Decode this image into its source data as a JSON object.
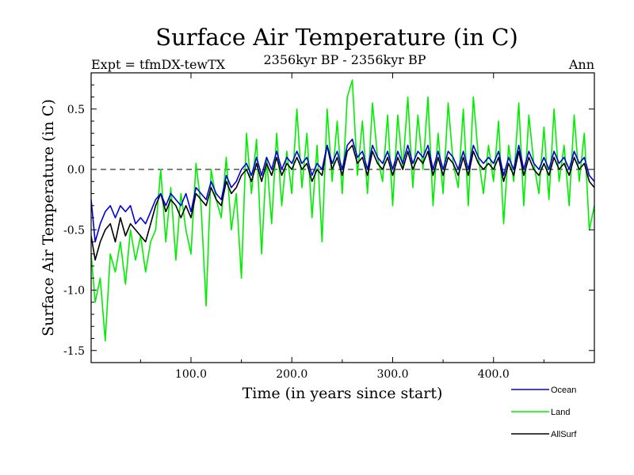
{
  "chart_data": {
    "type": "line",
    "title": "Surface Air Temperature (in C)",
    "subtitle": "2356kyr BP - 2356kyr BP",
    "experiment_label": "Expt = tfmDX-tewTX",
    "season_label": "Ann",
    "xlabel": "Time (in years since start)",
    "ylabel": "Surface Air Temperature (in C)",
    "xlim": [
      1,
      500
    ],
    "ylim": [
      -1.6,
      0.8
    ],
    "xticks": [
      100,
      200,
      300,
      400
    ],
    "xtick_labels": [
      "100.0",
      "200.0",
      "300.0",
      "400.0"
    ],
    "yticks": [
      -1.5,
      -1.0,
      -0.5,
      0.0,
      0.5
    ],
    "ytick_labels": [
      "-1.5",
      "-1.0",
      "-0.5",
      "0.0",
      "0.5"
    ],
    "zero_line": 0.0,
    "series": [
      {
        "name": "Land",
        "color": "#00ee00",
        "x": [
          1,
          5,
          10,
          15,
          20,
          25,
          30,
          35,
          40,
          45,
          50,
          55,
          60,
          65,
          70,
          75,
          80,
          85,
          90,
          95,
          100,
          105,
          110,
          115,
          120,
          125,
          130,
          135,
          140,
          145,
          150,
          155,
          160,
          165,
          170,
          175,
          180,
          185,
          190,
          195,
          200,
          205,
          210,
          215,
          220,
          225,
          230,
          235,
          240,
          245,
          250,
          255,
          260,
          265,
          270,
          275,
          280,
          285,
          290,
          295,
          300,
          305,
          310,
          315,
          320,
          325,
          330,
          335,
          340,
          345,
          350,
          355,
          360,
          365,
          370,
          375,
          380,
          385,
          390,
          395,
          400,
          405,
          410,
          415,
          420,
          425,
          430,
          435,
          440,
          445,
          450,
          455,
          460,
          465,
          470,
          475,
          480,
          485,
          490,
          495,
          500
        ],
        "values": [
          -0.7,
          -1.1,
          -0.9,
          -1.42,
          -0.7,
          -0.85,
          -0.6,
          -0.95,
          -0.5,
          -0.75,
          -0.55,
          -0.85,
          -0.6,
          -0.5,
          0.0,
          -0.6,
          -0.15,
          -0.75,
          -0.2,
          -0.5,
          -0.7,
          0.05,
          -0.3,
          -1.13,
          0.0,
          -0.25,
          -0.4,
          0.1,
          -0.5,
          -0.2,
          -0.9,
          0.3,
          -0.2,
          0.25,
          -0.7,
          0.1,
          -0.45,
          0.3,
          -0.3,
          0.15,
          -0.2,
          0.5,
          -0.15,
          0.3,
          -0.4,
          0.2,
          -0.6,
          0.5,
          -0.1,
          0.4,
          -0.2,
          0.6,
          0.74,
          -0.05,
          0.4,
          -0.2,
          0.55,
          0.1,
          -0.1,
          0.45,
          -0.3,
          0.45,
          0.0,
          0.6,
          -0.15,
          0.45,
          0.0,
          0.6,
          -0.3,
          0.3,
          -0.2,
          0.55,
          0.05,
          -0.15,
          0.5,
          -0.3,
          0.6,
          0.1,
          -0.2,
          0.2,
          -0.1,
          0.4,
          -0.45,
          0.2,
          -0.1,
          0.55,
          -0.3,
          0.45,
          0.05,
          -0.2,
          0.35,
          -0.25,
          0.5,
          -0.1,
          0.2,
          -0.3,
          0.45,
          -0.1,
          0.3,
          -0.5,
          -0.3
        ]
      },
      {
        "name": "AllSurf",
        "color": "#000000",
        "x": [
          1,
          5,
          10,
          15,
          20,
          25,
          30,
          35,
          40,
          45,
          50,
          55,
          60,
          65,
          70,
          75,
          80,
          85,
          90,
          95,
          100,
          105,
          110,
          115,
          120,
          125,
          130,
          135,
          140,
          145,
          150,
          155,
          160,
          165,
          170,
          175,
          180,
          185,
          190,
          195,
          200,
          205,
          210,
          215,
          220,
          225,
          230,
          235,
          240,
          245,
          250,
          255,
          260,
          265,
          270,
          275,
          280,
          285,
          290,
          295,
          300,
          305,
          310,
          315,
          320,
          325,
          330,
          335,
          340,
          345,
          350,
          355,
          360,
          365,
          370,
          375,
          380,
          385,
          390,
          395,
          400,
          405,
          410,
          415,
          420,
          425,
          430,
          435,
          440,
          445,
          450,
          455,
          460,
          465,
          470,
          475,
          480,
          485,
          490,
          495,
          500
        ],
        "values": [
          -0.55,
          -0.75,
          -0.6,
          -0.5,
          -0.45,
          -0.6,
          -0.4,
          -0.55,
          -0.45,
          -0.5,
          -0.55,
          -0.6,
          -0.45,
          -0.3,
          -0.2,
          -0.35,
          -0.25,
          -0.3,
          -0.4,
          -0.3,
          -0.4,
          -0.2,
          -0.25,
          -0.3,
          -0.15,
          -0.25,
          -0.3,
          -0.1,
          -0.2,
          -0.15,
          -0.05,
          0.0,
          -0.1,
          0.05,
          -0.1,
          0.05,
          -0.05,
          0.1,
          -0.05,
          0.05,
          0.0,
          0.1,
          0.0,
          0.05,
          -0.1,
          0.0,
          -0.05,
          0.2,
          0.0,
          0.1,
          -0.05,
          0.15,
          0.2,
          0.05,
          0.1,
          -0.05,
          0.15,
          0.05,
          0.0,
          0.1,
          -0.05,
          0.1,
          0.0,
          0.15,
          0.0,
          0.1,
          0.05,
          0.15,
          -0.05,
          0.1,
          -0.05,
          0.1,
          0.05,
          -0.05,
          0.1,
          -0.05,
          0.15,
          0.05,
          0.0,
          0.05,
          0.0,
          0.1,
          -0.1,
          0.05,
          -0.05,
          0.15,
          -0.05,
          0.1,
          0.0,
          -0.05,
          0.05,
          -0.05,
          0.1,
          0.0,
          0.05,
          -0.05,
          0.1,
          0.0,
          0.05,
          -0.1,
          -0.15
        ]
      },
      {
        "name": "Ocean",
        "color": "#0000dd",
        "x": [
          1,
          5,
          10,
          15,
          20,
          25,
          30,
          35,
          40,
          45,
          50,
          55,
          60,
          65,
          70,
          75,
          80,
          85,
          90,
          95,
          100,
          105,
          110,
          115,
          120,
          125,
          130,
          135,
          140,
          145,
          150,
          155,
          160,
          165,
          170,
          175,
          180,
          185,
          190,
          195,
          200,
          205,
          210,
          215,
          220,
          225,
          230,
          235,
          240,
          245,
          250,
          255,
          260,
          265,
          270,
          275,
          280,
          285,
          290,
          295,
          300,
          305,
          310,
          315,
          320,
          325,
          330,
          335,
          340,
          345,
          350,
          355,
          360,
          365,
          370,
          375,
          380,
          385,
          390,
          395,
          400,
          405,
          410,
          415,
          420,
          425,
          430,
          435,
          440,
          445,
          450,
          455,
          460,
          465,
          470,
          475,
          480,
          485,
          490,
          495,
          500
        ],
        "values": [
          -0.25,
          -0.6,
          -0.45,
          -0.35,
          -0.3,
          -0.4,
          -0.3,
          -0.35,
          -0.3,
          -0.45,
          -0.4,
          -0.45,
          -0.35,
          -0.25,
          -0.2,
          -0.3,
          -0.2,
          -0.25,
          -0.3,
          -0.2,
          -0.35,
          -0.15,
          -0.2,
          -0.25,
          -0.1,
          -0.2,
          -0.25,
          -0.05,
          -0.15,
          -0.1,
          0.0,
          0.05,
          -0.05,
          0.1,
          -0.05,
          0.1,
          0.0,
          0.15,
          0.0,
          0.1,
          0.05,
          0.15,
          0.05,
          0.1,
          -0.05,
          0.05,
          0.0,
          0.2,
          0.05,
          0.15,
          0.0,
          0.2,
          0.25,
          0.1,
          0.15,
          0.0,
          0.2,
          0.1,
          0.05,
          0.15,
          0.0,
          0.15,
          0.05,
          0.2,
          0.05,
          0.15,
          0.1,
          0.2,
          0.0,
          0.15,
          0.0,
          0.15,
          0.1,
          0.0,
          0.15,
          0.0,
          0.2,
          0.1,
          0.05,
          0.1,
          0.05,
          0.15,
          -0.05,
          0.1,
          0.0,
          0.2,
          0.0,
          0.15,
          0.05,
          0.0,
          0.1,
          0.0,
          0.15,
          0.05,
          0.1,
          0.0,
          0.15,
          0.05,
          0.1,
          -0.05,
          -0.1
        ]
      }
    ],
    "legend": [
      {
        "name": "Ocean",
        "color": "#0000dd"
      },
      {
        "name": "Land",
        "color": "#00ee00"
      },
      {
        "name": "AllSurf",
        "color": "#000000"
      }
    ]
  }
}
